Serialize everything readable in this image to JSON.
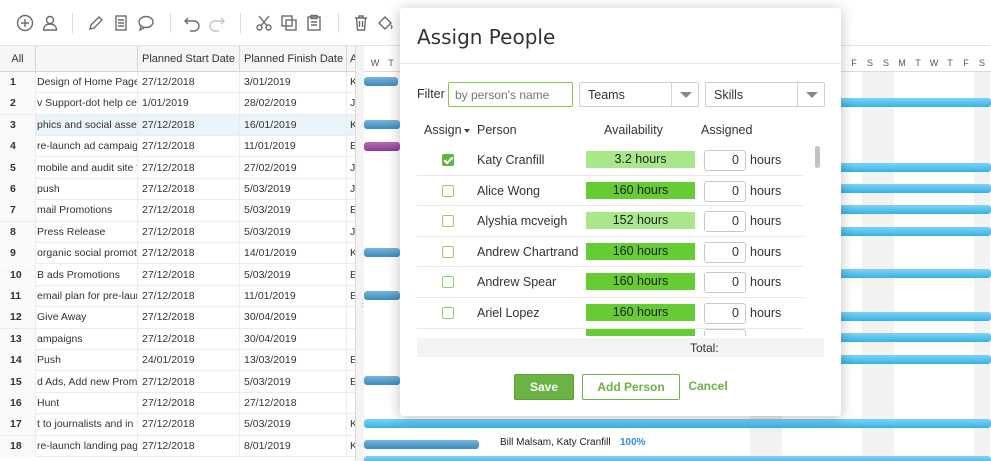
{
  "toolbar": {
    "icons": [
      "add-circle-icon",
      "user-icon",
      "pencil-icon",
      "document-icon",
      "comment-icon",
      "undo-icon",
      "redo-icon",
      "scissors-icon",
      "copy-icon",
      "paste-icon",
      "trash-icon",
      "paint-bucket-icon"
    ]
  },
  "grid": {
    "headers": {
      "all": "All",
      "start": "Planned Start Date",
      "finish": "Planned Finish Date",
      "extra": "A"
    },
    "rows": [
      {
        "num": "1",
        "name": "Design of Home Page",
        "start": "27/12/2018",
        "finish": "3/01/2019",
        "extra": "K"
      },
      {
        "num": "2",
        "name": "v Support-dot help cen",
        "start": "1/01/2019",
        "finish": "28/02/2019",
        "extra": "J"
      },
      {
        "num": "3",
        "name": "phics and social asse",
        "start": "27/12/2018",
        "finish": "16/01/2019",
        "extra": "K"
      },
      {
        "num": "4",
        "name": "re-launch ad campaign",
        "start": "27/12/2018",
        "finish": "11/01/2019",
        "extra": "E"
      },
      {
        "num": "5",
        "name": "mobile and audit site f",
        "start": "27/12/2018",
        "finish": "27/02/2019",
        "extra": "J"
      },
      {
        "num": "6",
        "name": "push",
        "start": "27/12/2018",
        "finish": "5/03/2019",
        "extra": "J"
      },
      {
        "num": "7",
        "name": "mail Promotions",
        "start": "27/12/2018",
        "finish": "5/03/2019",
        "extra": "E"
      },
      {
        "num": "8",
        "name": "Press Release",
        "start": "27/12/2018",
        "finish": "5/03/2019",
        "extra": "J"
      },
      {
        "num": "9",
        "name": "organic social promoti",
        "start": "27/12/2018",
        "finish": "14/01/2019",
        "extra": "K"
      },
      {
        "num": "10",
        "name": "B ads Promotions",
        "start": "27/12/2018",
        "finish": "5/03/2019",
        "extra": "E"
      },
      {
        "num": "11",
        "name": "email plan for pre-laun",
        "start": "27/12/2018",
        "finish": "11/01/2019",
        "extra": "E"
      },
      {
        "num": "12",
        "name": "Give Away",
        "start": "27/12/2018",
        "finish": "30/04/2019",
        "extra": ""
      },
      {
        "num": "13",
        "name": "ampaigns",
        "start": "27/12/2018",
        "finish": "30/04/2019",
        "extra": ""
      },
      {
        "num": "14",
        "name": "Push",
        "start": "24/01/2019",
        "finish": "13/03/2019",
        "extra": "E"
      },
      {
        "num": "15",
        "name": "d Ads, Add new Prom",
        "start": "27/12/2018",
        "finish": "5/03/2019",
        "extra": "E"
      },
      {
        "num": "16",
        "name": "Hunt",
        "start": "27/12/2018",
        "finish": "27/12/2018",
        "extra": ""
      },
      {
        "num": "17",
        "name": "t to journalists and in",
        "start": "27/12/2018",
        "finish": "5/03/2019",
        "extra": "K"
      },
      {
        "num": "18",
        "name": "re-launch landing pag",
        "start": "27/12/2018",
        "finish": "8/01/2019",
        "extra": "K"
      }
    ]
  },
  "gantt": {
    "days_left": [
      "W",
      "T"
    ],
    "days_right": [
      "F",
      "S",
      "S",
      "M",
      "T",
      "W",
      "T",
      "F",
      "S"
    ],
    "resource_label": "Bill Malsam, Katy Cranfill",
    "resource_pct": "100%"
  },
  "dialog": {
    "title": "Assign People",
    "filter_label": "Filter",
    "filter_placeholder": "by person's name",
    "teams_select": "Teams",
    "skills_select": "Skills",
    "columns": {
      "assign": "Assign",
      "person": "Person",
      "availability": "Availability",
      "assigned": "Assigned"
    },
    "people": [
      {
        "name": "Katy Cranfill",
        "availability": "3.2 hours",
        "assigned": "0",
        "unit": "hours",
        "checked": true,
        "level": "part"
      },
      {
        "name": "Alice Wong",
        "availability": "160 hours",
        "assigned": "0",
        "unit": "hours",
        "checked": false,
        "level": "full"
      },
      {
        "name": "Alyshia mcveigh",
        "availability": "152 hours",
        "assigned": "0",
        "unit": "hours",
        "checked": false,
        "level": "part"
      },
      {
        "name": "Andrew Chartrand",
        "availability": "160 hours",
        "assigned": "0",
        "unit": "hours",
        "checked": false,
        "level": "full"
      },
      {
        "name": "Andrew Spear",
        "availability": "160 hours",
        "assigned": "0",
        "unit": "hours",
        "checked": false,
        "level": "full"
      },
      {
        "name": "Ariel Lopez",
        "availability": "160 hours",
        "assigned": "0",
        "unit": "hours",
        "checked": false,
        "level": "full"
      }
    ],
    "total_label": "Total:",
    "save_label": "Save",
    "add_person_label": "Add Person",
    "cancel_label": "Cancel"
  },
  "colors": {
    "accent_green": "#6bb344",
    "availability_full": "#66cc33",
    "availability_partial": "#a9e88a",
    "gantt_bar": "#35b2e6"
  }
}
